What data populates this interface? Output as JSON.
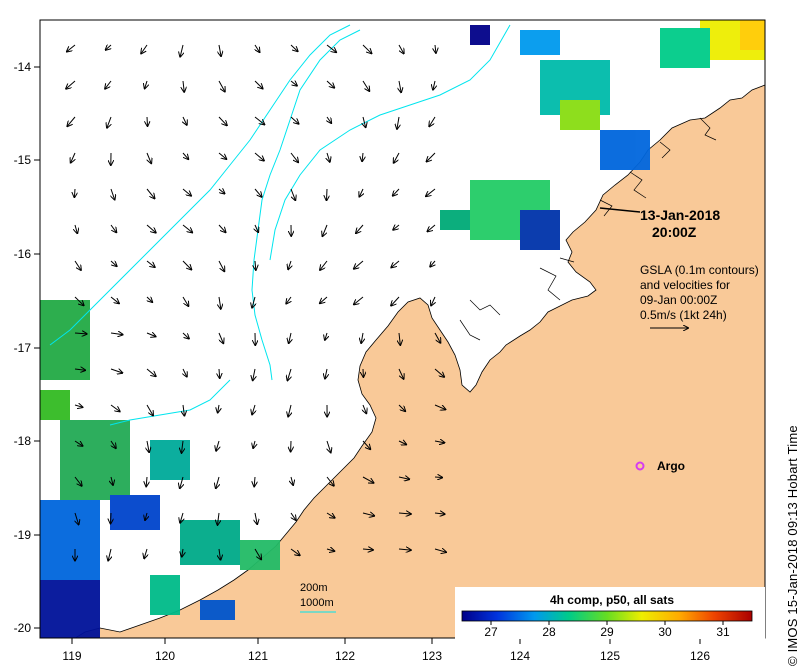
{
  "map": {
    "x_ticks": [
      "119",
      "120",
      "121",
      "122",
      "123",
      "124",
      "125",
      "126"
    ],
    "y_ticks": [
      "-14",
      "-15",
      "-16",
      "-17",
      "-18",
      "-19",
      "-20"
    ],
    "colors": {
      "land": "#f9c998",
      "ocean": "#ffffff",
      "contour": "#00e5ee",
      "argo": "#d63cf0"
    }
  },
  "annotations": {
    "date": "13-Jan-2018",
    "time": "20:00Z",
    "gsla_line1": "GSLA (0.1m contours)",
    "gsla_line2": "and velocities for",
    "gsla_line3": "09-Jan 00:00Z",
    "gsla_line4": "0.5m/s (1kt 24h)",
    "argo_label": "Argo",
    "depth_200": "200m",
    "depth_1000": "1000m"
  },
  "colorbar": {
    "title": "4h comp, p50, all sats",
    "ticks": [
      "27",
      "28",
      "29",
      "30",
      "31"
    ],
    "min": 26.5,
    "max": 31.5,
    "colors": [
      "#000088",
      "#0033dd",
      "#0099ee",
      "#00cc88",
      "#66dd22",
      "#eeee00",
      "#ffaa00",
      "#ee4400",
      "#aa0000"
    ]
  },
  "credit": "©  IMOS 15-Jan-2018 09:13 Hobart Time"
}
